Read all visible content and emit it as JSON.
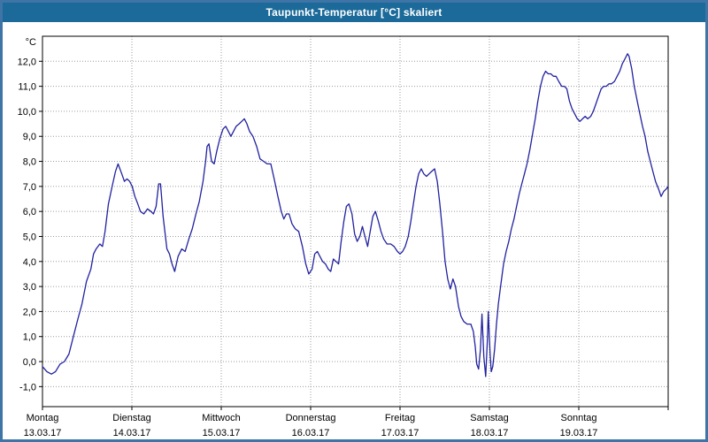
{
  "frame": {
    "border_color": "#3f74a6",
    "background": "#ffffff"
  },
  "title_bar": {
    "text": "Taupunkt-Temperatur [°C] skaliert",
    "bg": "#1b6a99",
    "fg": "#ffffff"
  },
  "chart_data": {
    "type": "line",
    "title": "Taupunkt-Temperatur [°C] skaliert",
    "ylabel_unit": "°C",
    "ylim": [
      -1.8,
      13.0
    ],
    "grid": true,
    "legend": "none",
    "line_color": "#2121a0",
    "grid_color": "#9c9c9c",
    "axis_color": "#000000",
    "x_hours_total": 168,
    "y_ticks": [
      {
        "value": 12,
        "label": "12,0"
      },
      {
        "value": 11,
        "label": "11,0"
      },
      {
        "value": 10,
        "label": "10,0"
      },
      {
        "value": 9,
        "label": "9,0"
      },
      {
        "value": 8,
        "label": "8,0"
      },
      {
        "value": 7,
        "label": "7,0"
      },
      {
        "value": 6,
        "label": "6,0"
      },
      {
        "value": 5,
        "label": "5,0"
      },
      {
        "value": 4,
        "label": "4,0"
      },
      {
        "value": 3,
        "label": "3,0"
      },
      {
        "value": 2,
        "label": "2,0"
      },
      {
        "value": 1,
        "label": "1,0"
      },
      {
        "value": 0,
        "label": "0,0"
      },
      {
        "value": -1,
        "label": "-1,0"
      }
    ],
    "days": [
      {
        "name": "Montag",
        "date": "13.03.17"
      },
      {
        "name": "Dienstag",
        "date": "14.03.17"
      },
      {
        "name": "Mittwoch",
        "date": "15.03.17"
      },
      {
        "name": "Donnerstag",
        "date": "16.03.17"
      },
      {
        "name": "Freitag",
        "date": "17.03.17"
      },
      {
        "name": "Samstag",
        "date": "18.03.17"
      },
      {
        "name": "Sonntag",
        "date": "19.03.17"
      }
    ],
    "series": [
      {
        "name": "Taupunkt-Temperatur",
        "unit": "°C",
        "points": [
          [
            0,
            -0.2
          ],
          [
            1.2,
            -0.4
          ],
          [
            2.4,
            -0.5
          ],
          [
            3.5,
            -0.4
          ],
          [
            4.7,
            -0.1
          ],
          [
            5.9,
            0.0
          ],
          [
            7.1,
            0.3
          ],
          [
            8.3,
            1.0
          ],
          [
            9.5,
            1.7
          ],
          [
            10.6,
            2.3
          ],
          [
            11.8,
            3.2
          ],
          [
            13,
            3.7
          ],
          [
            13.7,
            4.3
          ],
          [
            14.4,
            4.5
          ],
          [
            15.4,
            4.7
          ],
          [
            16.1,
            4.6
          ],
          [
            16.8,
            5.2
          ],
          [
            17.7,
            6.3
          ],
          [
            18.7,
            7.0
          ],
          [
            19.6,
            7.6
          ],
          [
            20.3,
            7.9
          ],
          [
            21.3,
            7.5
          ],
          [
            22,
            7.2
          ],
          [
            22.7,
            7.3
          ],
          [
            23.4,
            7.2
          ],
          [
            24.1,
            7.0
          ],
          [
            24.8,
            6.6
          ],
          [
            25.6,
            6.3
          ],
          [
            26.3,
            6.0
          ],
          [
            27.2,
            5.9
          ],
          [
            28.2,
            6.1
          ],
          [
            29.1,
            6.0
          ],
          [
            29.8,
            5.9
          ],
          [
            30.5,
            6.2
          ],
          [
            31.2,
            7.1
          ],
          [
            31.7,
            7.1
          ],
          [
            32.4,
            5.8
          ],
          [
            33.4,
            4.5
          ],
          [
            34.1,
            4.3
          ],
          [
            34.8,
            3.9
          ],
          [
            35.5,
            3.6
          ],
          [
            36.4,
            4.2
          ],
          [
            37.4,
            4.5
          ],
          [
            38.3,
            4.4
          ],
          [
            39.3,
            4.9
          ],
          [
            40.2,
            5.3
          ],
          [
            41.2,
            5.9
          ],
          [
            42.1,
            6.4
          ],
          [
            43.1,
            7.2
          ],
          [
            43.8,
            8.0
          ],
          [
            44.2,
            8.6
          ],
          [
            44.7,
            8.7
          ],
          [
            45.4,
            8.0
          ],
          [
            46.1,
            7.9
          ],
          [
            46.8,
            8.4
          ],
          [
            47.6,
            8.9
          ],
          [
            48.5,
            9.3
          ],
          [
            49.2,
            9.4
          ],
          [
            49.9,
            9.2
          ],
          [
            50.6,
            9.0
          ],
          [
            51.3,
            9.2
          ],
          [
            52,
            9.4
          ],
          [
            52.8,
            9.5
          ],
          [
            53.5,
            9.6
          ],
          [
            54.2,
            9.7
          ],
          [
            54.9,
            9.5
          ],
          [
            55.6,
            9.2
          ],
          [
            56.5,
            9.0
          ],
          [
            57.5,
            8.6
          ],
          [
            58.4,
            8.1
          ],
          [
            59.4,
            8.0
          ],
          [
            60.3,
            7.9
          ],
          [
            61.3,
            7.9
          ],
          [
            62.2,
            7.3
          ],
          [
            63.2,
            6.6
          ],
          [
            64.1,
            6.0
          ],
          [
            64.8,
            5.7
          ],
          [
            65.5,
            5.9
          ],
          [
            66.2,
            5.9
          ],
          [
            67,
            5.5
          ],
          [
            67.9,
            5.3
          ],
          [
            68.8,
            5.2
          ],
          [
            69.8,
            4.6
          ],
          [
            70.7,
            3.9
          ],
          [
            71.5,
            3.5
          ],
          [
            72.4,
            3.7
          ],
          [
            73.1,
            4.3
          ],
          [
            73.8,
            4.4
          ],
          [
            74.5,
            4.2
          ],
          [
            75.2,
            4.0
          ],
          [
            76,
            3.9
          ],
          [
            76.7,
            3.7
          ],
          [
            77.4,
            3.6
          ],
          [
            78.1,
            4.1
          ],
          [
            78.8,
            4.0
          ],
          [
            79.5,
            3.9
          ],
          [
            80.2,
            4.8
          ],
          [
            80.9,
            5.6
          ],
          [
            81.6,
            6.2
          ],
          [
            82.3,
            6.3
          ],
          [
            83.1,
            5.9
          ],
          [
            83.8,
            5.1
          ],
          [
            84.5,
            4.8
          ],
          [
            85.2,
            5.0
          ],
          [
            85.9,
            5.4
          ],
          [
            86.6,
            5.0
          ],
          [
            87.3,
            4.6
          ],
          [
            88,
            5.2
          ],
          [
            88.7,
            5.8
          ],
          [
            89.4,
            6.0
          ],
          [
            90.2,
            5.6
          ],
          [
            90.9,
            5.2
          ],
          [
            91.6,
            4.9
          ],
          [
            92.5,
            4.7
          ],
          [
            93.5,
            4.7
          ],
          [
            94.4,
            4.6
          ],
          [
            95.3,
            4.4
          ],
          [
            96,
            4.3
          ],
          [
            96.7,
            4.4
          ],
          [
            97.4,
            4.6
          ],
          [
            98.2,
            5.0
          ],
          [
            98.9,
            5.6
          ],
          [
            99.6,
            6.3
          ],
          [
            100.3,
            7.0
          ],
          [
            101,
            7.5
          ],
          [
            101.7,
            7.7
          ],
          [
            102.4,
            7.5
          ],
          [
            103.1,
            7.4
          ],
          [
            103.8,
            7.5
          ],
          [
            104.5,
            7.6
          ],
          [
            105.3,
            7.7
          ],
          [
            106,
            7.2
          ],
          [
            106.7,
            6.3
          ],
          [
            107.4,
            5.2
          ],
          [
            108.1,
            4.0
          ],
          [
            108.8,
            3.3
          ],
          [
            109.5,
            2.9
          ],
          [
            110.2,
            3.3
          ],
          [
            110.9,
            3.0
          ],
          [
            111.7,
            2.2
          ],
          [
            112.4,
            1.8
          ],
          [
            113.1,
            1.6
          ],
          [
            114,
            1.5
          ],
          [
            115,
            1.5
          ],
          [
            115.7,
            1.2
          ],
          [
            116.2,
            0.6
          ],
          [
            116.6,
            -0.1
          ],
          [
            117.1,
            -0.3
          ],
          [
            117.6,
            0.5
          ],
          [
            118,
            1.9
          ],
          [
            118.5,
            0.2
          ],
          [
            119,
            -0.6
          ],
          [
            119.5,
            1.0
          ],
          [
            119.7,
            2.0
          ],
          [
            120.2,
            0.3
          ],
          [
            120.5,
            -0.4
          ],
          [
            120.9,
            -0.2
          ],
          [
            121.4,
            0.5
          ],
          [
            121.9,
            1.5
          ],
          [
            122.4,
            2.3
          ],
          [
            123.1,
            3.1
          ],
          [
            123.8,
            3.9
          ],
          [
            124.5,
            4.4
          ],
          [
            125.2,
            4.8
          ],
          [
            125.9,
            5.3
          ],
          [
            126.6,
            5.7
          ],
          [
            127.3,
            6.2
          ],
          [
            128,
            6.7
          ],
          [
            128.7,
            7.1
          ],
          [
            129.4,
            7.5
          ],
          [
            130.1,
            7.9
          ],
          [
            130.9,
            8.5
          ],
          [
            131.6,
            9.1
          ],
          [
            132.3,
            9.7
          ],
          [
            133,
            10.4
          ],
          [
            133.7,
            11.0
          ],
          [
            134.4,
            11.4
          ],
          [
            135.1,
            11.6
          ],
          [
            135.8,
            11.5
          ],
          [
            136.5,
            11.5
          ],
          [
            137.2,
            11.4
          ],
          [
            137.9,
            11.4
          ],
          [
            138.6,
            11.2
          ],
          [
            139.4,
            11.0
          ],
          [
            140.1,
            11.0
          ],
          [
            140.8,
            10.9
          ],
          [
            141.5,
            10.4
          ],
          [
            142.2,
            10.1
          ],
          [
            142.9,
            9.9
          ],
          [
            143.6,
            9.7
          ],
          [
            144.3,
            9.6
          ],
          [
            145,
            9.7
          ],
          [
            145.7,
            9.8
          ],
          [
            146.4,
            9.7
          ],
          [
            147.2,
            9.8
          ],
          [
            147.9,
            10.0
          ],
          [
            148.6,
            10.3
          ],
          [
            149.3,
            10.6
          ],
          [
            150,
            10.9
          ],
          [
            150.7,
            11.0
          ],
          [
            151.4,
            11.0
          ],
          [
            152.1,
            11.1
          ],
          [
            152.8,
            11.1
          ],
          [
            153.6,
            11.2
          ],
          [
            154.3,
            11.4
          ],
          [
            155,
            11.6
          ],
          [
            155.7,
            11.9
          ],
          [
            156.4,
            12.1
          ],
          [
            157.1,
            12.3
          ],
          [
            157.5,
            12.2
          ],
          [
            158.2,
            11.7
          ],
          [
            158.9,
            11.0
          ],
          [
            159.7,
            10.4
          ],
          [
            160.4,
            9.9
          ],
          [
            161.1,
            9.4
          ],
          [
            161.8,
            9.0
          ],
          [
            162.5,
            8.4
          ],
          [
            163.2,
            8.0
          ],
          [
            163.9,
            7.6
          ],
          [
            164.6,
            7.2
          ],
          [
            165.4,
            6.9
          ],
          [
            166.1,
            6.6
          ],
          [
            166.8,
            6.8
          ],
          [
            167.5,
            6.9
          ],
          [
            168,
            7.0
          ]
        ]
      }
    ]
  }
}
